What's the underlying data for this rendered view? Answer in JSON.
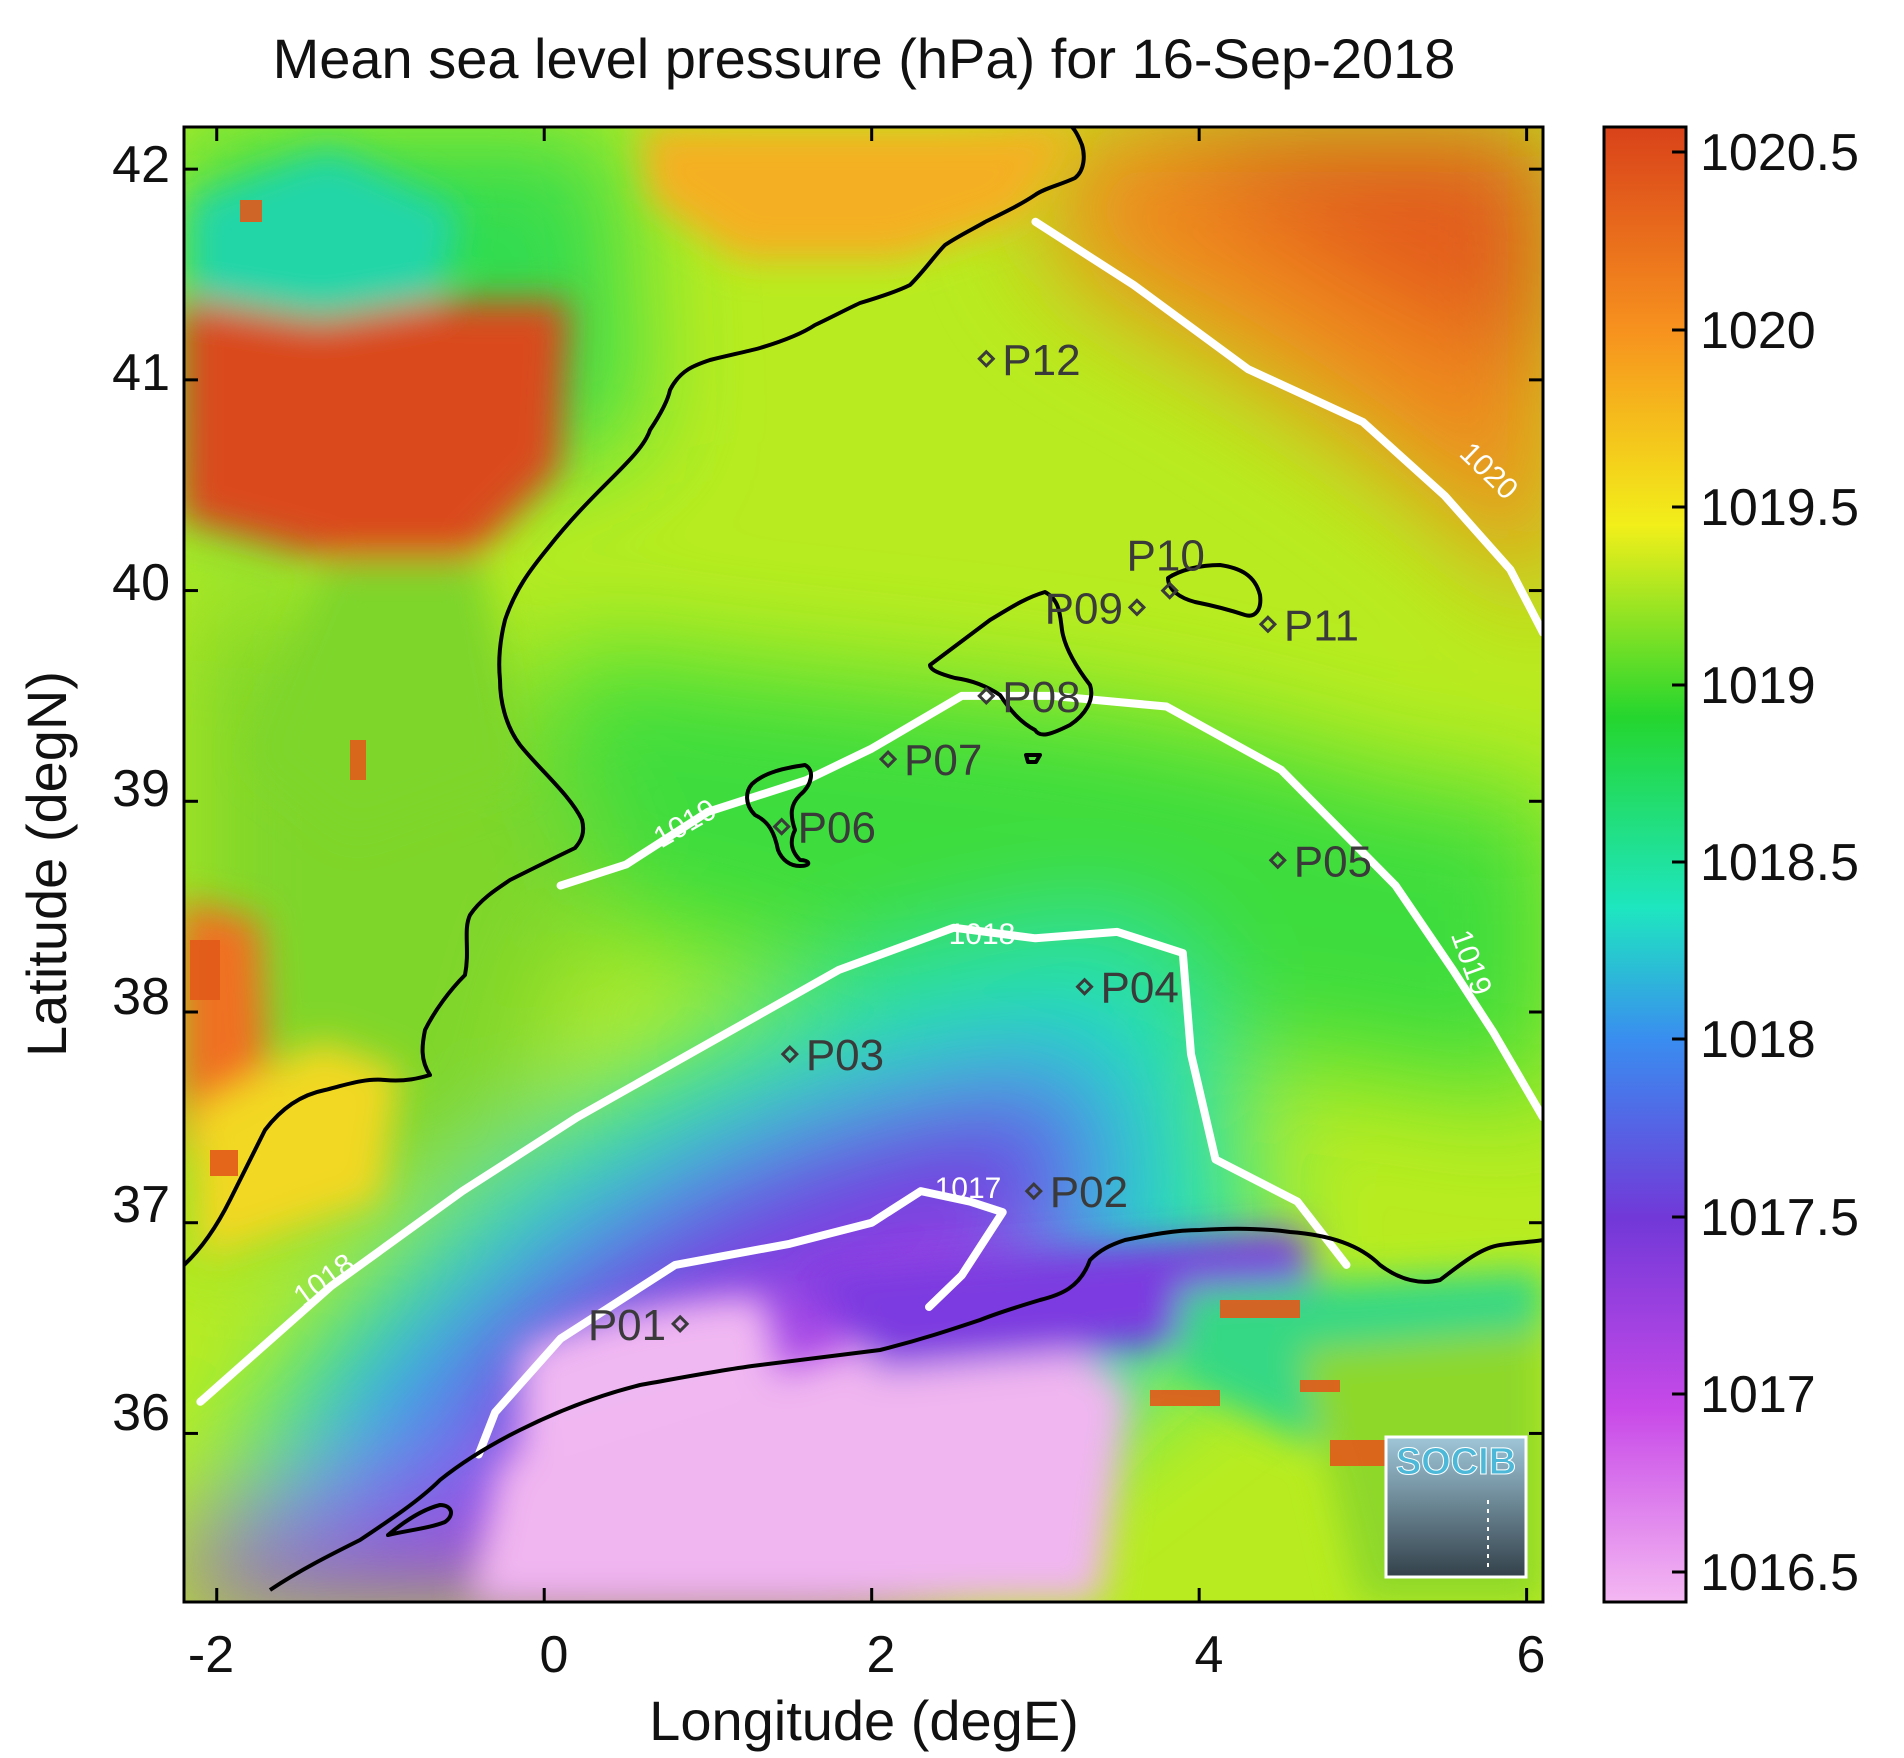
{
  "title": "Mean sea level pressure (hPa) for 16-Sep-2018",
  "x_axis": {
    "label": "Longitude (degE)",
    "ticks": [
      "-2",
      "0",
      "2",
      "4",
      "6"
    ]
  },
  "y_axis": {
    "label": "Latitude (degN)",
    "ticks": [
      "42",
      "41",
      "40",
      "39",
      "38",
      "37",
      "36"
    ]
  },
  "colorbar": {
    "ticks": [
      "1020.5",
      "1020",
      "1019.5",
      "1019",
      "1018.5",
      "1018",
      "1017.5",
      "1017",
      "1016.5"
    ],
    "colors": [
      "#d9421a",
      "#f7931e",
      "#f2ef1a",
      "#25d62e",
      "#1ee6c0",
      "#3a8cf0",
      "#7238d8",
      "#c84ae8",
      "#f4b8f2"
    ]
  },
  "contour_labels": [
    "1020",
    "1019",
    "1019",
    "1018",
    "1018",
    "1017"
  ],
  "stations": [
    "P01",
    "P02",
    "P03",
    "P04",
    "P05",
    "P06",
    "P07",
    "P08",
    "P09",
    "P10",
    "P11",
    "P12"
  ],
  "logo": "SOCIB",
  "chart_data": {
    "type": "heatmap",
    "title": "Mean sea level pressure (hPa) for 16-Sep-2018",
    "xlabel": "Longitude (degE)",
    "ylabel": "Latitude (degN)",
    "xlim": [
      -2.2,
      6.1
    ],
    "ylim": [
      35.2,
      42.2
    ],
    "color_range": [
      1016.4,
      1020.6
    ],
    "stations": [
      {
        "name": "P01",
        "lon": 0.83,
        "lat": 36.52
      },
      {
        "name": "P02",
        "lon": 2.99,
        "lat": 37.15
      },
      {
        "name": "P03",
        "lon": 1.5,
        "lat": 37.8
      },
      {
        "name": "P04",
        "lon": 3.3,
        "lat": 38.12
      },
      {
        "name": "P05",
        "lon": 4.48,
        "lat": 38.72
      },
      {
        "name": "P06",
        "lon": 1.45,
        "lat": 38.88
      },
      {
        "name": "P07",
        "lon": 2.1,
        "lat": 39.2
      },
      {
        "name": "P08",
        "lon": 2.7,
        "lat": 39.5
      },
      {
        "name": "P09",
        "lon": 3.62,
        "lat": 39.92
      },
      {
        "name": "P10",
        "lon": 3.82,
        "lat": 40.0
      },
      {
        "name": "P11",
        "lon": 4.42,
        "lat": 39.84
      },
      {
        "name": "P12",
        "lon": 2.7,
        "lat": 41.1
      }
    ],
    "contours": [
      {
        "level": 1020,
        "points": [
          [
            3.0,
            41.75
          ],
          [
            3.6,
            41.45
          ],
          [
            4.3,
            41.05
          ],
          [
            5.0,
            40.8
          ],
          [
            5.5,
            40.45
          ],
          [
            5.9,
            40.1
          ],
          [
            6.1,
            39.8
          ]
        ]
      },
      {
        "level": 1019,
        "points": [
          [
            0.1,
            38.6
          ],
          [
            0.5,
            38.7
          ],
          [
            1.0,
            38.95
          ],
          [
            1.6,
            39.1
          ],
          [
            2.0,
            39.25
          ],
          [
            2.55,
            39.5
          ],
          [
            3.1,
            39.5
          ],
          [
            3.8,
            39.45
          ],
          [
            4.5,
            39.15
          ],
          [
            5.2,
            38.6
          ],
          [
            5.55,
            38.2
          ],
          [
            5.8,
            37.9
          ],
          [
            6.1,
            37.5
          ]
        ]
      },
      {
        "level": 1018,
        "points": [
          [
            -2.1,
            36.15
          ],
          [
            -1.3,
            36.7
          ],
          [
            -0.5,
            37.15
          ],
          [
            0.2,
            37.5
          ],
          [
            1.0,
            37.85
          ],
          [
            1.8,
            38.2
          ],
          [
            2.5,
            38.4
          ],
          [
            3.0,
            38.35
          ],
          [
            3.5,
            38.38
          ],
          [
            3.9,
            38.28
          ],
          [
            3.95,
            37.8
          ],
          [
            4.1,
            37.3
          ],
          [
            4.6,
            37.1
          ],
          [
            4.9,
            36.8
          ]
        ]
      },
      {
        "level": 1017,
        "points": [
          [
            -0.4,
            35.9
          ],
          [
            -0.3,
            36.1
          ],
          [
            0.1,
            36.45
          ],
          [
            0.8,
            36.8
          ],
          [
            1.5,
            36.9
          ],
          [
            2.0,
            37.0
          ],
          [
            2.3,
            37.15
          ],
          [
            2.6,
            37.1
          ],
          [
            2.8,
            37.05
          ],
          [
            2.55,
            36.75
          ],
          [
            2.35,
            36.6
          ]
        ]
      }
    ]
  }
}
